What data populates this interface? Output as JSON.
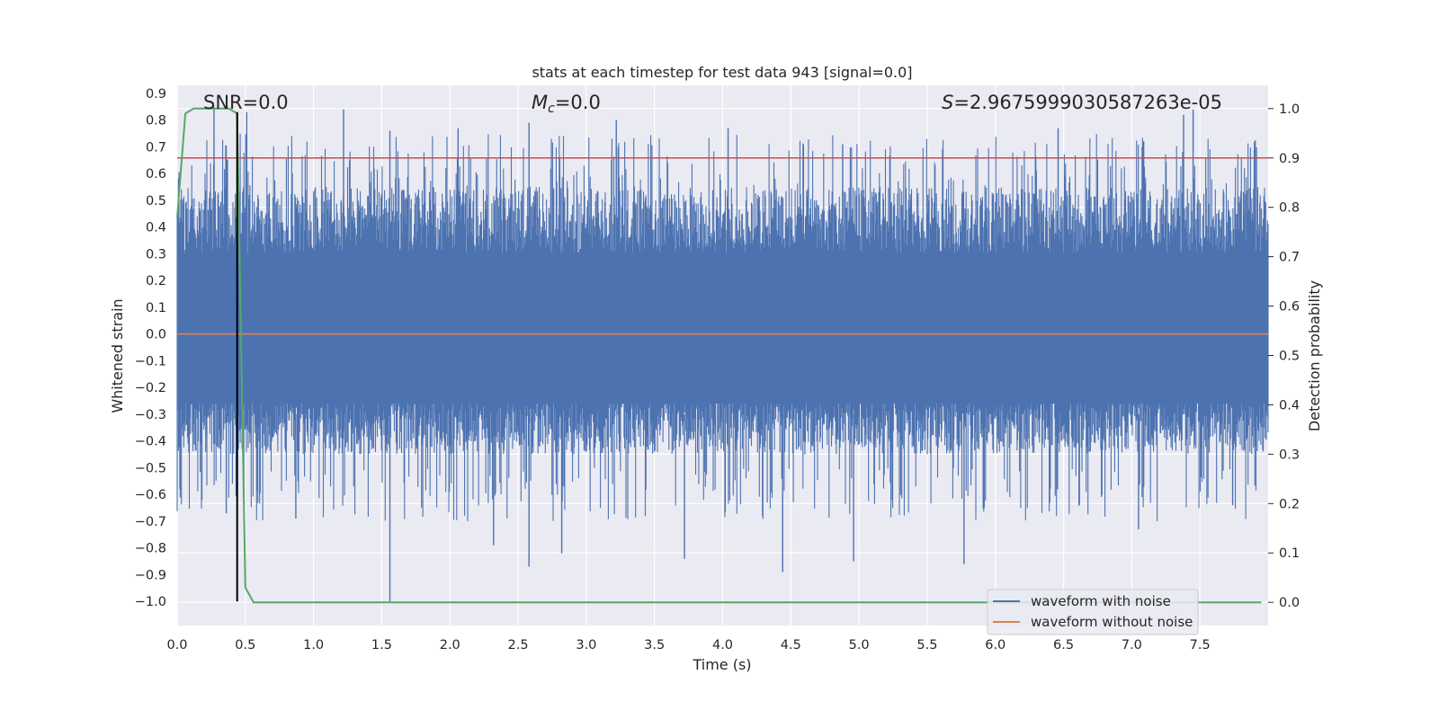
{
  "chart_data": {
    "type": "line",
    "title": "stats at each timestep for test data 943 [signal=0.0]",
    "xlabel": "Time (s)",
    "ylabel": "Whitened strain",
    "y2label": "Detection probability",
    "xlim": [
      0.0,
      8.0
    ],
    "ylim": [
      -1.09,
      0.93
    ],
    "y2lim": [
      -0.047,
      1.047
    ],
    "x_ticks": [
      "0.0",
      "0.5",
      "1.0",
      "1.5",
      "2.0",
      "2.5",
      "3.0",
      "3.5",
      "4.0",
      "4.5",
      "5.0",
      "5.5",
      "6.0",
      "6.5",
      "7.0",
      "7.5"
    ],
    "y_ticks": [
      "0.9",
      "0.8",
      "0.7",
      "0.6",
      "0.5",
      "0.4",
      "0.3",
      "0.2",
      "0.1",
      "0.0",
      "−0.1",
      "−0.2",
      "−0.3",
      "−0.4",
      "−0.5",
      "−0.6",
      "−0.7",
      "−0.8",
      "−0.9",
      "−1.0"
    ],
    "y2_ticks": [
      "1.0",
      "0.9",
      "0.8",
      "0.7",
      "0.6",
      "0.5",
      "0.4",
      "0.3",
      "0.2",
      "0.1",
      "0.0"
    ],
    "annotations": {
      "snr": "SNR=0.0",
      "mc": "M_c=0.0",
      "s": "S=2.9675999030587263e-05"
    },
    "noise_envelope": {
      "description": "dense noisy whitened strain, sampled range",
      "typical_max": 0.55,
      "typical_min": -0.45,
      "peaks_max": [
        [
          0.27,
          0.85
        ],
        [
          0.51,
          0.83
        ],
        [
          1.22,
          0.84
        ],
        [
          1.56,
          0.76
        ],
        [
          2.06,
          0.77
        ],
        [
          2.58,
          0.79
        ],
        [
          3.22,
          0.8
        ],
        [
          4.04,
          0.77
        ],
        [
          4.88,
          0.71
        ],
        [
          6.46,
          0.77
        ],
        [
          7.38,
          0.82
        ],
        [
          7.45,
          0.84
        ],
        [
          7.9,
          0.72
        ]
      ],
      "peaks_min": [
        [
          0.02,
          -0.58
        ],
        [
          0.36,
          -0.67
        ],
        [
          0.87,
          -0.69
        ],
        [
          1.56,
          -1.0
        ],
        [
          2.32,
          -0.79
        ],
        [
          2.58,
          -0.87
        ],
        [
          2.82,
          -0.82
        ],
        [
          3.72,
          -0.84
        ],
        [
          4.44,
          -0.89
        ],
        [
          4.96,
          -0.85
        ],
        [
          5.77,
          -0.86
        ],
        [
          7.05,
          -0.73
        ],
        [
          7.74,
          -0.64
        ]
      ]
    },
    "series": [
      {
        "name": "waveform with noise",
        "color": "#4c72b0",
        "axis": "left"
      },
      {
        "name": "waveform without noise",
        "color": "#dd8452",
        "axis": "left",
        "constant": 0.0
      },
      {
        "name": "detection probability",
        "color": "#55a868",
        "axis": "right",
        "x": [
          0.0,
          0.06,
          0.12,
          0.2,
          0.3,
          0.38,
          0.44,
          0.5,
          0.56,
          1.0,
          8.0
        ],
        "y": [
          0.78,
          0.99,
          1.0,
          1.0,
          1.0,
          1.0,
          0.99,
          0.03,
          0.0,
          0.0,
          0.0
        ]
      },
      {
        "name": "threshold",
        "color": "#c44e52",
        "axis": "right",
        "constant": 0.9
      },
      {
        "name": "detection time",
        "color": "#000000",
        "axis": "vline",
        "x": 0.44,
        "ymin": -1.0,
        "ymax": 0.83
      }
    ],
    "legend": {
      "placement": "bottom-right",
      "entries": [
        "waveform with noise",
        "waveform without noise"
      ]
    }
  }
}
